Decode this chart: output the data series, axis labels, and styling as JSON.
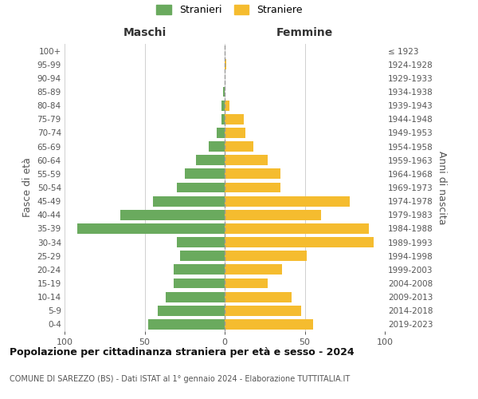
{
  "age_groups": [
    "0-4",
    "5-9",
    "10-14",
    "15-19",
    "20-24",
    "25-29",
    "30-34",
    "35-39",
    "40-44",
    "45-49",
    "50-54",
    "55-59",
    "60-64",
    "65-69",
    "70-74",
    "75-79",
    "80-84",
    "85-89",
    "90-94",
    "95-99",
    "100+"
  ],
  "birth_years": [
    "2019-2023",
    "2014-2018",
    "2009-2013",
    "2004-2008",
    "1999-2003",
    "1994-1998",
    "1989-1993",
    "1984-1988",
    "1979-1983",
    "1974-1978",
    "1969-1973",
    "1964-1968",
    "1959-1963",
    "1954-1958",
    "1949-1953",
    "1944-1948",
    "1939-1943",
    "1934-1938",
    "1929-1933",
    "1924-1928",
    "≤ 1923"
  ],
  "males": [
    48,
    42,
    37,
    32,
    32,
    28,
    30,
    92,
    65,
    45,
    30,
    25,
    18,
    10,
    5,
    2,
    2,
    1,
    0,
    0,
    0
  ],
  "females": [
    55,
    48,
    42,
    27,
    36,
    51,
    93,
    90,
    60,
    78,
    35,
    35,
    27,
    18,
    13,
    12,
    3,
    0,
    0,
    1,
    0
  ],
  "male_color": "#6aaa5e",
  "female_color": "#f5bc2f",
  "background_color": "#ffffff",
  "grid_color": "#d0d0d0",
  "title": "Popolazione per cittadinanza straniera per età e sesso - 2024",
  "subtitle": "COMUNE DI SAREZZO (BS) - Dati ISTAT al 1° gennaio 2024 - Elaborazione TUTTITALIA.IT",
  "left_section_label": "Maschi",
  "right_section_label": "Femmine",
  "ylabel_left": "Fasce di età",
  "ylabel_right": "Anni di nascita",
  "legend_m": "Stranieri",
  "legend_f": "Straniere",
  "xlim": 100,
  "bar_height": 0.75
}
